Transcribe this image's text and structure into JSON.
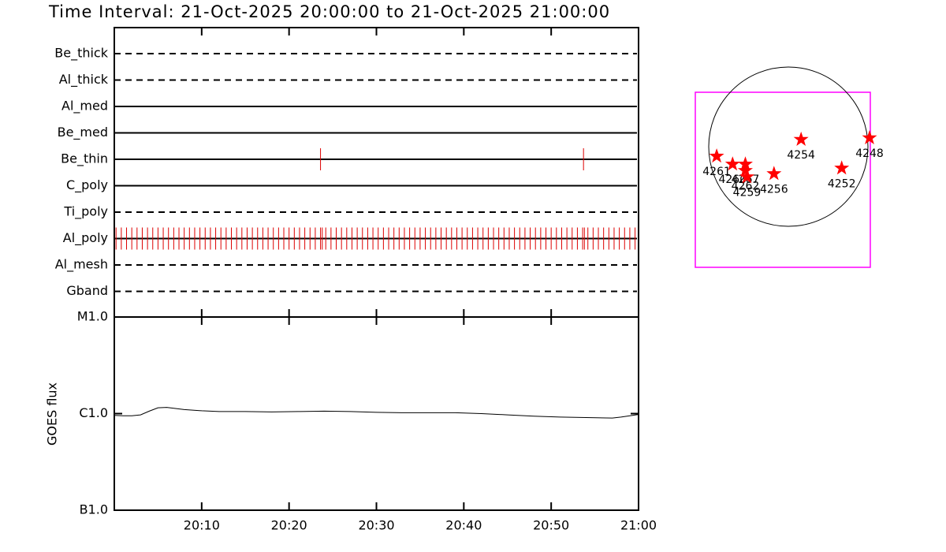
{
  "title": "Time Interval: 21-Oct-2025 20:00:00 to 21-Oct-2025 21:00:00",
  "chart_data": [
    {
      "type": "timeline",
      "event_color": "#dd0000",
      "series": [
        {
          "name": "Be_thick",
          "style": "dashed",
          "x": []
        },
        {
          "name": "Al_thick",
          "style": "dashed",
          "x": []
        },
        {
          "name": "Al_med",
          "style": "solid",
          "x": []
        },
        {
          "name": "Be_med",
          "style": "solid",
          "x": []
        },
        {
          "name": "Be_thin",
          "style": "solid",
          "x": [
            23.6,
            53.7
          ]
        },
        {
          "name": "C_poly",
          "style": "solid",
          "x": []
        },
        {
          "name": "Ti_poly",
          "style": "dashed",
          "x": []
        },
        {
          "name": "Al_poly",
          "style": "solid",
          "x": [
            0.2,
            0.8,
            1.4,
            2.0,
            2.6,
            3.2,
            3.8,
            4.4,
            5.0,
            5.6,
            6.2,
            6.8,
            7.4,
            8.0,
            8.6,
            9.2,
            9.8,
            10.4,
            11.0,
            11.6,
            12.2,
            12.8,
            13.4,
            14.0,
            14.6,
            15.2,
            15.8,
            16.4,
            17.0,
            17.6,
            18.2,
            18.8,
            19.4,
            20.0,
            20.6,
            21.2,
            21.8,
            22.4,
            23.0,
            23.6,
            23.8,
            24.2,
            24.8,
            25.4,
            26.0,
            26.6,
            27.2,
            27.8,
            28.4,
            29.0,
            29.6,
            30.2,
            30.8,
            31.4,
            32.0,
            32.6,
            33.2,
            33.8,
            34.4,
            35.0,
            35.6,
            36.2,
            36.8,
            37.4,
            38.0,
            38.6,
            39.2,
            39.8,
            40.4,
            41.0,
            41.6,
            42.2,
            42.8,
            43.4,
            44.0,
            44.6,
            45.2,
            45.8,
            46.4,
            47.0,
            47.6,
            48.2,
            48.8,
            49.4,
            50.0,
            50.6,
            51.2,
            51.8,
            52.4,
            53.0,
            53.6,
            53.8,
            54.2,
            54.8,
            55.4,
            56.0,
            56.6,
            57.2,
            57.8,
            58.4,
            59.0,
            59.6
          ]
        },
        {
          "name": "Al_mesh",
          "style": "dashed",
          "x": []
        },
        {
          "name": "Gband",
          "style": "dashed",
          "x": []
        }
      ]
    },
    {
      "type": "line",
      "ylabel": "GOES flux",
      "log_scale": true,
      "color": "#000000",
      "xlim": [
        0,
        60
      ],
      "xticks": [
        {
          "value": 10,
          "label": "20:10"
        },
        {
          "value": 20,
          "label": "20:20"
        },
        {
          "value": 30,
          "label": "20:30"
        },
        {
          "value": 40,
          "label": "20:40"
        },
        {
          "value": 50,
          "label": "20:50"
        },
        {
          "value": 60,
          "label": "21:00"
        }
      ],
      "ylim": [
        1e-07,
        1e-05
      ],
      "yticks": [
        {
          "value": 1e-07,
          "label": "B1.0"
        },
        {
          "value": 1e-06,
          "label": "C1.0"
        },
        {
          "value": 1e-05,
          "label": "M1.0"
        }
      ],
      "x": [
        0,
        1,
        2,
        3,
        4,
        5,
        6,
        7,
        8,
        10,
        12,
        15,
        18,
        21,
        24,
        27,
        30,
        33,
        36,
        39,
        42,
        45,
        48,
        51,
        54,
        57,
        58,
        59,
        60
      ],
      "values": [
        9.6e-07,
        9.5e-07,
        9.5e-07,
        9.7e-07,
        1.06e-06,
        1.15e-06,
        1.16e-06,
        1.13e-06,
        1.1e-06,
        1.07e-06,
        1.05e-06,
        1.05e-06,
        1.04e-06,
        1.05e-06,
        1.06e-06,
        1.05e-06,
        1.03e-06,
        1.02e-06,
        1.02e-06,
        1.02e-06,
        1e-06,
        9.7e-07,
        9.4e-07,
        9.2e-07,
        9.1e-07,
        9e-07,
        9.2e-07,
        9.5e-07,
        9.8e-07
      ]
    },
    {
      "type": "scatter",
      "color": "#ff0000",
      "labels": [
        "4261",
        "4260",
        "4267",
        "4262",
        "4259",
        "4256",
        "4254",
        "4252",
        "4248"
      ],
      "x": [
        -0.9,
        -0.7,
        -0.54,
        -0.54,
        -0.52,
        -0.18,
        0.16,
        0.67,
        1.02
      ],
      "values": [
        -0.12,
        -0.22,
        -0.22,
        -0.3,
        -0.38,
        -0.34,
        0.09,
        -0.27,
        0.11
      ]
    }
  ]
}
